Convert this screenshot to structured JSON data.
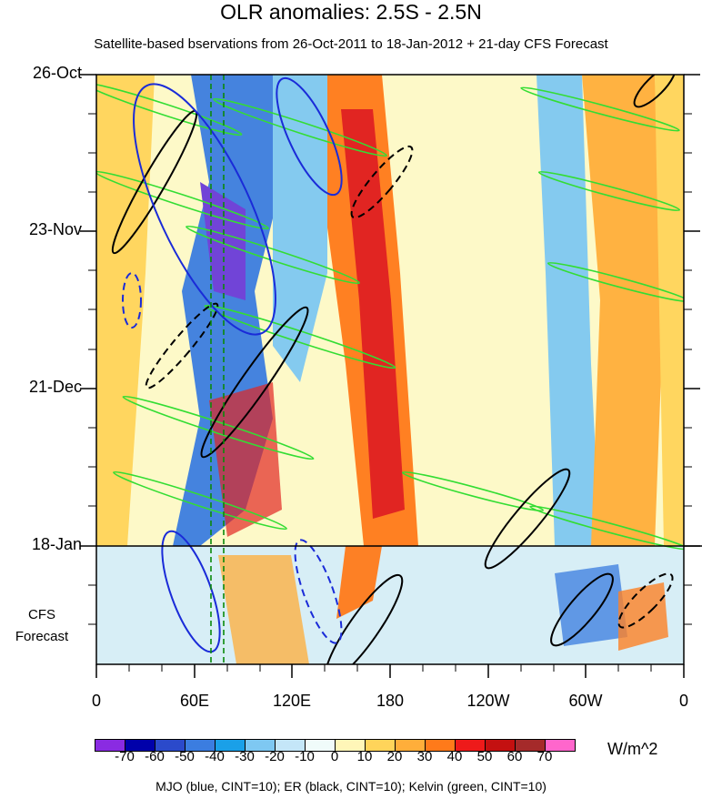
{
  "chart_data": {
    "type": "heatmap",
    "title": "OLR anomalies: 2.5S - 2.5N",
    "subtitle": "Satellite-based bservations from 26-Oct-2011 to 18-Jan-2012 + 21-day CFS Forecast",
    "y_tick_labels": [
      "26-Oct",
      "23-Nov",
      "21-Dec",
      "18-Jan"
    ],
    "forecast_label_line1": "CFS",
    "forecast_label_line2": "Forecast",
    "x_tick_labels": [
      "0",
      "60E",
      "120E",
      "180",
      "120W",
      "60W",
      "0"
    ],
    "x_longitudes": [
      0,
      60,
      120,
      180,
      240,
      300,
      360
    ],
    "colorbar": {
      "levels": [
        "-70",
        "-60",
        "-50",
        "-40",
        "-30",
        "-20",
        "-10",
        "0",
        "10",
        "20",
        "30",
        "40",
        "50",
        "60",
        "70"
      ],
      "colors": [
        "#8a2be2",
        "#0000aa",
        "#2b4acb",
        "#3b7de0",
        "#1aa0e8",
        "#7ec8f2",
        "#c4e6f8",
        "#f0fbfa",
        "#fff6b8",
        "#ffd45a",
        "#ffae3a",
        "#ff7a1a",
        "#ee1a1a",
        "#c41010",
        "#a52a2a",
        "#ff66cc"
      ],
      "units": "W/m^2"
    },
    "contours_caption": "MJO (blue, CINT=10); ER (black, CINT=10); Kelvin (green, CINT=10)",
    "observation_end": "18-Jan",
    "forecast_days": 21
  }
}
